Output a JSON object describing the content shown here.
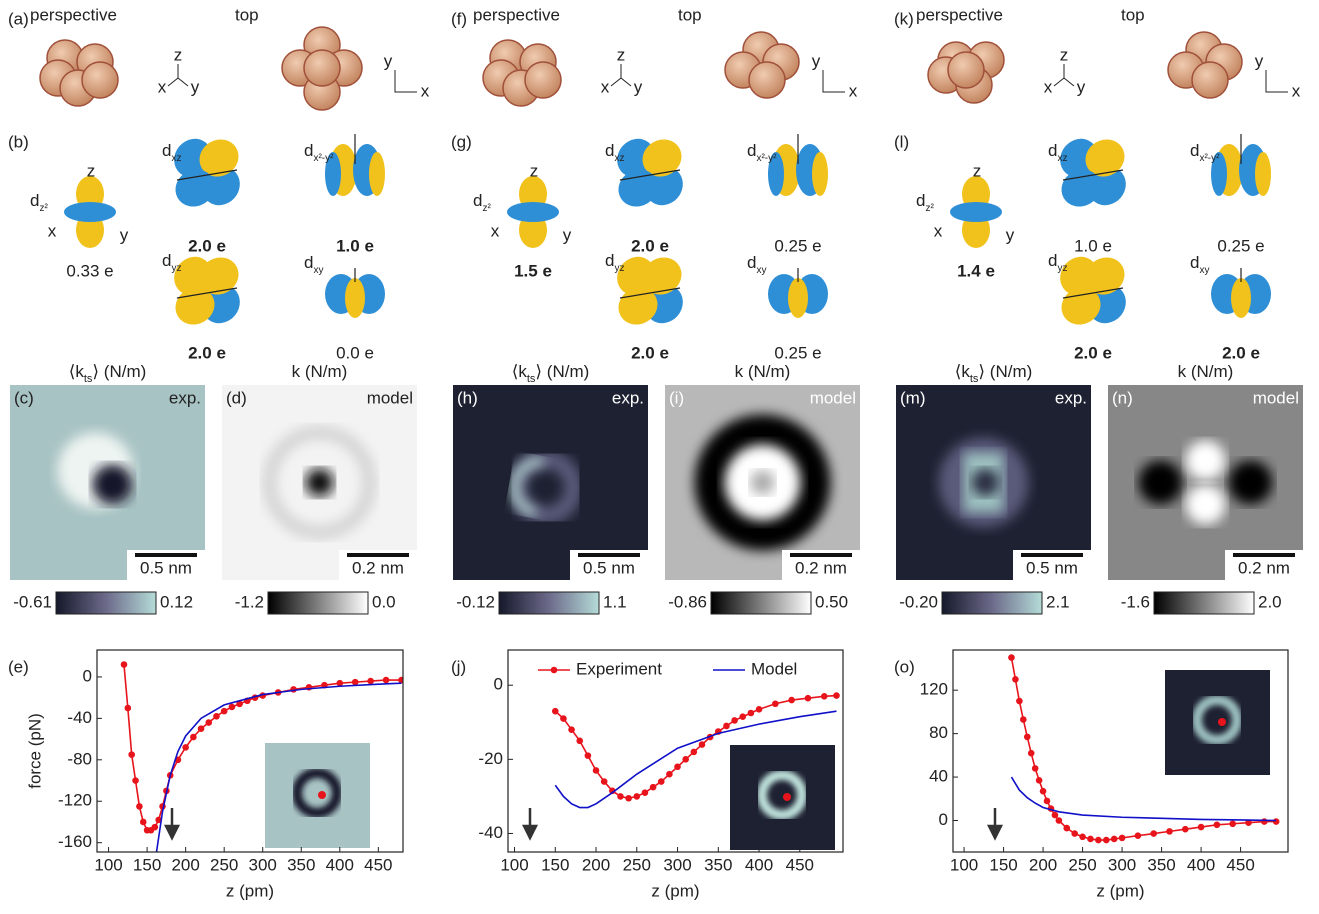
{
  "panels": [
    {
      "labels": [
        "(a)",
        "(b)",
        "(c)",
        "(d)",
        "(e)"
      ],
      "perspective": "perspective",
      "top": "top",
      "axes3d": [
        "z",
        "x",
        "y"
      ],
      "axes2d": [
        "y",
        "x"
      ],
      "orbital_axes": [
        "z",
        "x",
        "y"
      ],
      "orbitals": [
        {
          "symbol": "d",
          "subscript": "z²",
          "occupation": "0.33 e",
          "bold": false
        },
        {
          "symbol": "d",
          "subscript": "xz",
          "occupation": "2.0 e",
          "bold": true
        },
        {
          "symbol": "d",
          "subscript": "x²-y²",
          "occupation": "1.0 e",
          "bold": true
        },
        {
          "symbol": "d",
          "subscript": "yz",
          "occupation": "2.0 e",
          "bold": true
        },
        {
          "symbol": "d",
          "subscript": "xy",
          "occupation": "0.0 e",
          "bold": false
        }
      ],
      "maps": [
        {
          "title": [
            "⟨k",
            "ts",
            "⟩ (N/m)"
          ],
          "tag": "exp.",
          "scale": "0.5 nm",
          "cbar": [
            "-0.61",
            "0.12"
          ]
        },
        {
          "title": [
            "k (N/m)"
          ],
          "tag": "model",
          "scale": "0.2 nm",
          "cbar": [
            "-1.2",
            "0.0"
          ]
        }
      ]
    },
    {
      "labels": [
        "(f)",
        "(g)",
        "(h)",
        "(i)",
        "(j)"
      ],
      "perspective": "perspective",
      "top": "top",
      "axes3d": [
        "z",
        "x",
        "y"
      ],
      "axes2d": [
        "y",
        "x"
      ],
      "orbital_axes": [
        "z",
        "x",
        "y"
      ],
      "orbitals": [
        {
          "symbol": "d",
          "subscript": "z²",
          "occupation": "1.5 e",
          "bold": true
        },
        {
          "symbol": "d",
          "subscript": "xz",
          "occupation": "2.0 e",
          "bold": true
        },
        {
          "symbol": "d",
          "subscript": "x²-y²",
          "occupation": "0.25 e",
          "bold": false
        },
        {
          "symbol": "d",
          "subscript": "yz",
          "occupation": "2.0 e",
          "bold": true
        },
        {
          "symbol": "d",
          "subscript": "xy",
          "occupation": "0.25 e",
          "bold": false
        }
      ],
      "maps": [
        {
          "title": [
            "⟨k",
            "ts",
            "⟩ (N/m)"
          ],
          "tag": "exp.",
          "scale": "0.5 nm",
          "cbar": [
            "-0.12",
            "1.1"
          ]
        },
        {
          "title": [
            "k (N/m)"
          ],
          "tag": "model",
          "scale": "0.2 nm",
          "cbar": [
            "-0.86",
            "0.50"
          ]
        }
      ]
    },
    {
      "labels": [
        "(k)",
        "(l)",
        "(m)",
        "(n)",
        "(o)"
      ],
      "perspective": "perspective",
      "top": "top",
      "axes3d": [
        "z",
        "x",
        "y"
      ],
      "axes2d": [
        "y",
        "x"
      ],
      "orbital_axes": [
        "z",
        "x",
        "y"
      ],
      "orbitals": [
        {
          "symbol": "d",
          "subscript": "z²",
          "occupation": "1.4 e",
          "bold": true
        },
        {
          "symbol": "d",
          "subscript": "xz",
          "occupation": "1.0 e",
          "bold": false
        },
        {
          "symbol": "d",
          "subscript": "x²-y²",
          "occupation": "0.25 e",
          "bold": false
        },
        {
          "symbol": "d",
          "subscript": "yz",
          "occupation": "2.0 e",
          "bold": true
        },
        {
          "symbol": "d",
          "subscript": "xy",
          "occupation": "2.0 e",
          "bold": true
        }
      ],
      "maps": [
        {
          "title": [
            "⟨k",
            "ts",
            "⟩ (N/m)"
          ],
          "tag": "exp.",
          "scale": "0.5 nm",
          "cbar": [
            "-0.20",
            "2.1"
          ]
        },
        {
          "title": [
            "k (N/m)"
          ],
          "tag": "model",
          "scale": "0.2 nm",
          "cbar": [
            "-1.6",
            "2.0"
          ]
        }
      ]
    }
  ],
  "chart_data": [
    {
      "type": "line",
      "ylabel": "force (pN)",
      "xlabel": "z (pm)",
      "xlim": [
        85,
        482
      ],
      "ylim": [
        -169,
        26
      ],
      "xticks": [
        100,
        150,
        200,
        250,
        300,
        350,
        400,
        450
      ],
      "yticks": [
        0,
        -40,
        -80,
        -120,
        -160
      ],
      "series": [
        {
          "color": "#e8141c",
          "markers": true,
          "x": [
            120,
            125,
            130,
            135,
            140,
            145,
            150,
            155,
            160,
            165,
            170,
            175,
            180,
            190,
            200,
            210,
            220,
            230,
            240,
            250,
            260,
            270,
            280,
            290,
            300,
            320,
            340,
            360,
            380,
            400,
            420,
            440,
            460,
            480
          ],
          "values": [
            12,
            -30,
            -75,
            -100,
            -125,
            -140,
            -148,
            -148,
            -145,
            -138,
            -125,
            -110,
            -95,
            -80,
            -68,
            -58,
            -50,
            -44,
            -38,
            -33,
            -29,
            -26,
            -23,
            -20,
            -18,
            -15,
            -12,
            -10,
            -8,
            -6,
            -5,
            -4,
            -3,
            -3
          ]
        },
        {
          "color": "#1010c8",
          "markers": false,
          "x": [
            162,
            170,
            180,
            190,
            200,
            220,
            250,
            300,
            350,
            400,
            450,
            480
          ],
          "values": [
            -170,
            -130,
            -95,
            -72,
            -57,
            -40,
            -27,
            -17,
            -12,
            -9,
            -7,
            -6
          ]
        }
      ]
    },
    {
      "type": "line",
      "xlabel": "z (pm)",
      "xlim": [
        92,
        503
      ],
      "ylim": [
        -45,
        9.5
      ],
      "xticks": [
        100,
        150,
        200,
        250,
        300,
        350,
        400,
        450
      ],
      "yticks": [
        0,
        -20,
        -40
      ],
      "series": [
        {
          "name": "Experiment",
          "color": "#e8141c",
          "markers": true,
          "x": [
            150,
            160,
            170,
            180,
            190,
            200,
            210,
            220,
            230,
            240,
            250,
            260,
            270,
            280,
            290,
            300,
            310,
            320,
            330,
            340,
            350,
            360,
            370,
            380,
            390,
            400,
            420,
            440,
            460,
            480,
            495
          ],
          "values": [
            -7,
            -9,
            -12,
            -15,
            -19,
            -23,
            -26,
            -28.5,
            -30,
            -30.5,
            -30,
            -29,
            -27.5,
            -26,
            -24,
            -22,
            -20,
            -18,
            -16,
            -14,
            -12.5,
            -11,
            -9.5,
            -8.5,
            -7.5,
            -6.5,
            -5,
            -4,
            -3.5,
            -3,
            -2.8
          ]
        },
        {
          "name": "Model",
          "color": "#1010c8",
          "markers": false,
          "x": [
            150,
            160,
            170,
            180,
            190,
            200,
            220,
            250,
            300,
            350,
            400,
            450,
            495
          ],
          "values": [
            -27,
            -30,
            -32,
            -33,
            -33,
            -32,
            -29,
            -24,
            -17,
            -13,
            -10.5,
            -8.5,
            -7
          ]
        }
      ]
    },
    {
      "type": "line",
      "xlabel": "z (pm)",
      "xlim": [
        86,
        510
      ],
      "ylim": [
        -29,
        157
      ],
      "xticks": [
        100,
        150,
        200,
        250,
        300,
        350,
        400,
        450
      ],
      "yticks": [
        0,
        40,
        80,
        120
      ],
      "series": [
        {
          "color": "#e8141c",
          "markers": true,
          "x": [
            160,
            165,
            170,
            175,
            180,
            185,
            190,
            195,
            200,
            205,
            210,
            215,
            220,
            230,
            240,
            250,
            260,
            270,
            280,
            290,
            300,
            320,
            340,
            360,
            380,
            400,
            420,
            440,
            460,
            480,
            495
          ],
          "values": [
            150,
            130,
            110,
            93,
            77,
            62,
            48,
            37,
            27,
            18,
            11,
            5,
            0,
            -7,
            -12,
            -15,
            -17,
            -18,
            -18,
            -17,
            -16,
            -14,
            -12,
            -10,
            -8,
            -6,
            -4,
            -3,
            -2,
            -1,
            -1
          ]
        },
        {
          "color": "#1010c8",
          "markers": false,
          "x": [
            160,
            170,
            180,
            190,
            200,
            220,
            250,
            300,
            350,
            400,
            450,
            495
          ],
          "values": [
            40,
            28,
            21,
            16,
            12,
            8,
            5,
            3,
            2,
            1,
            0.5,
            0
          ]
        }
      ]
    }
  ]
}
